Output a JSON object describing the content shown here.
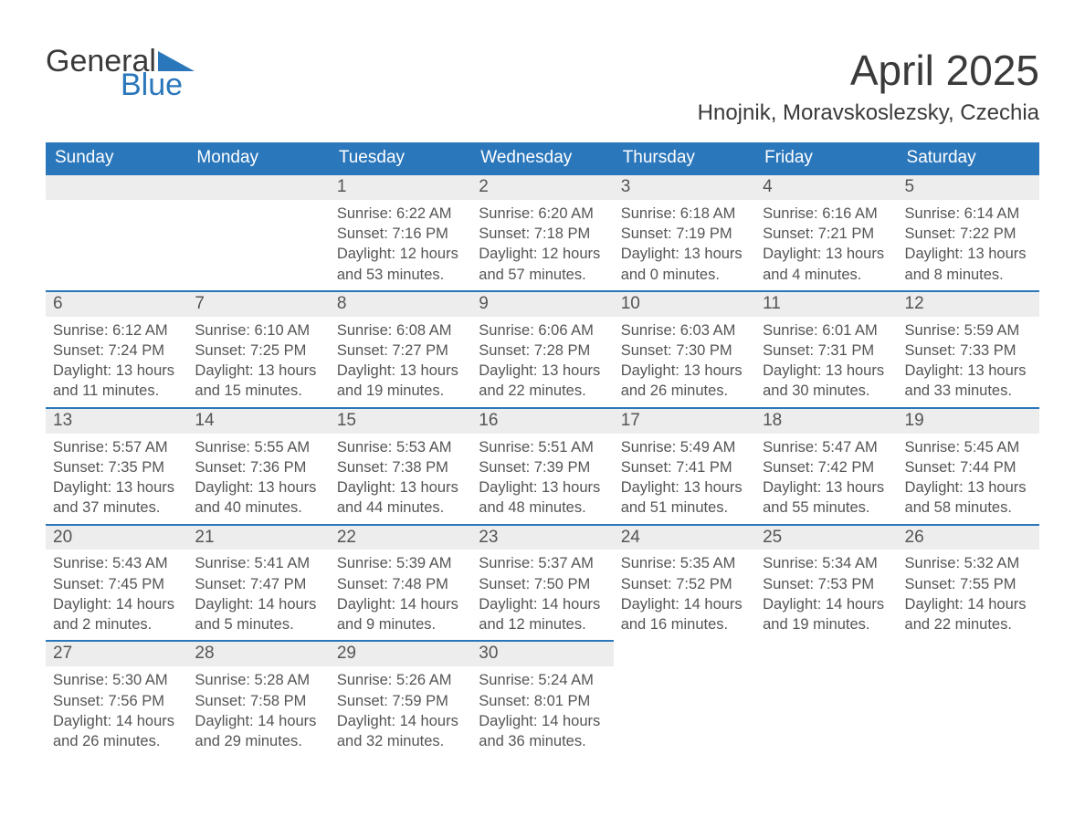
{
  "brand": {
    "text_top": "General",
    "text_bottom": "Blue",
    "triangle_color": "#2b77bb"
  },
  "title": "April 2025",
  "location": "Hnojnik, Moravskoslezsky, Czechia",
  "colors": {
    "header_bg": "#2b77bb",
    "header_text": "#ffffff",
    "daynum_bg": "#ededed",
    "text": "#555555",
    "row_border": "#2b77bb",
    "page_bg": "#ffffff"
  },
  "typography": {
    "title_fontsize": 46,
    "location_fontsize": 24,
    "weekday_fontsize": 19,
    "daynum_fontsize": 19,
    "body_fontsize": 16.5,
    "logo_fontsize": 34
  },
  "weekdays": [
    "Sunday",
    "Monday",
    "Tuesday",
    "Wednesday",
    "Thursday",
    "Friday",
    "Saturday"
  ],
  "weeks": [
    [
      {
        "day": "",
        "sunrise": "",
        "sunset": "",
        "daylight": ""
      },
      {
        "day": "",
        "sunrise": "",
        "sunset": "",
        "daylight": ""
      },
      {
        "day": "1",
        "sunrise": "Sunrise: 6:22 AM",
        "sunset": "Sunset: 7:16 PM",
        "daylight": "Daylight: 12 hours and 53 minutes."
      },
      {
        "day": "2",
        "sunrise": "Sunrise: 6:20 AM",
        "sunset": "Sunset: 7:18 PM",
        "daylight": "Daylight: 12 hours and 57 minutes."
      },
      {
        "day": "3",
        "sunrise": "Sunrise: 6:18 AM",
        "sunset": "Sunset: 7:19 PM",
        "daylight": "Daylight: 13 hours and 0 minutes."
      },
      {
        "day": "4",
        "sunrise": "Sunrise: 6:16 AM",
        "sunset": "Sunset: 7:21 PM",
        "daylight": "Daylight: 13 hours and 4 minutes."
      },
      {
        "day": "5",
        "sunrise": "Sunrise: 6:14 AM",
        "sunset": "Sunset: 7:22 PM",
        "daylight": "Daylight: 13 hours and 8 minutes."
      }
    ],
    [
      {
        "day": "6",
        "sunrise": "Sunrise: 6:12 AM",
        "sunset": "Sunset: 7:24 PM",
        "daylight": "Daylight: 13 hours and 11 minutes."
      },
      {
        "day": "7",
        "sunrise": "Sunrise: 6:10 AM",
        "sunset": "Sunset: 7:25 PM",
        "daylight": "Daylight: 13 hours and 15 minutes."
      },
      {
        "day": "8",
        "sunrise": "Sunrise: 6:08 AM",
        "sunset": "Sunset: 7:27 PM",
        "daylight": "Daylight: 13 hours and 19 minutes."
      },
      {
        "day": "9",
        "sunrise": "Sunrise: 6:06 AM",
        "sunset": "Sunset: 7:28 PM",
        "daylight": "Daylight: 13 hours and 22 minutes."
      },
      {
        "day": "10",
        "sunrise": "Sunrise: 6:03 AM",
        "sunset": "Sunset: 7:30 PM",
        "daylight": "Daylight: 13 hours and 26 minutes."
      },
      {
        "day": "11",
        "sunrise": "Sunrise: 6:01 AM",
        "sunset": "Sunset: 7:31 PM",
        "daylight": "Daylight: 13 hours and 30 minutes."
      },
      {
        "day": "12",
        "sunrise": "Sunrise: 5:59 AM",
        "sunset": "Sunset: 7:33 PM",
        "daylight": "Daylight: 13 hours and 33 minutes."
      }
    ],
    [
      {
        "day": "13",
        "sunrise": "Sunrise: 5:57 AM",
        "sunset": "Sunset: 7:35 PM",
        "daylight": "Daylight: 13 hours and 37 minutes."
      },
      {
        "day": "14",
        "sunrise": "Sunrise: 5:55 AM",
        "sunset": "Sunset: 7:36 PM",
        "daylight": "Daylight: 13 hours and 40 minutes."
      },
      {
        "day": "15",
        "sunrise": "Sunrise: 5:53 AM",
        "sunset": "Sunset: 7:38 PM",
        "daylight": "Daylight: 13 hours and 44 minutes."
      },
      {
        "day": "16",
        "sunrise": "Sunrise: 5:51 AM",
        "sunset": "Sunset: 7:39 PM",
        "daylight": "Daylight: 13 hours and 48 minutes."
      },
      {
        "day": "17",
        "sunrise": "Sunrise: 5:49 AM",
        "sunset": "Sunset: 7:41 PM",
        "daylight": "Daylight: 13 hours and 51 minutes."
      },
      {
        "day": "18",
        "sunrise": "Sunrise: 5:47 AM",
        "sunset": "Sunset: 7:42 PM",
        "daylight": "Daylight: 13 hours and 55 minutes."
      },
      {
        "day": "19",
        "sunrise": "Sunrise: 5:45 AM",
        "sunset": "Sunset: 7:44 PM",
        "daylight": "Daylight: 13 hours and 58 minutes."
      }
    ],
    [
      {
        "day": "20",
        "sunrise": "Sunrise: 5:43 AM",
        "sunset": "Sunset: 7:45 PM",
        "daylight": "Daylight: 14 hours and 2 minutes."
      },
      {
        "day": "21",
        "sunrise": "Sunrise: 5:41 AM",
        "sunset": "Sunset: 7:47 PM",
        "daylight": "Daylight: 14 hours and 5 minutes."
      },
      {
        "day": "22",
        "sunrise": "Sunrise: 5:39 AM",
        "sunset": "Sunset: 7:48 PM",
        "daylight": "Daylight: 14 hours and 9 minutes."
      },
      {
        "day": "23",
        "sunrise": "Sunrise: 5:37 AM",
        "sunset": "Sunset: 7:50 PM",
        "daylight": "Daylight: 14 hours and 12 minutes."
      },
      {
        "day": "24",
        "sunrise": "Sunrise: 5:35 AM",
        "sunset": "Sunset: 7:52 PM",
        "daylight": "Daylight: 14 hours and 16 minutes."
      },
      {
        "day": "25",
        "sunrise": "Sunrise: 5:34 AM",
        "sunset": "Sunset: 7:53 PM",
        "daylight": "Daylight: 14 hours and 19 minutes."
      },
      {
        "day": "26",
        "sunrise": "Sunrise: 5:32 AM",
        "sunset": "Sunset: 7:55 PM",
        "daylight": "Daylight: 14 hours and 22 minutes."
      }
    ],
    [
      {
        "day": "27",
        "sunrise": "Sunrise: 5:30 AM",
        "sunset": "Sunset: 7:56 PM",
        "daylight": "Daylight: 14 hours and 26 minutes."
      },
      {
        "day": "28",
        "sunrise": "Sunrise: 5:28 AM",
        "sunset": "Sunset: 7:58 PM",
        "daylight": "Daylight: 14 hours and 29 minutes."
      },
      {
        "day": "29",
        "sunrise": "Sunrise: 5:26 AM",
        "sunset": "Sunset: 7:59 PM",
        "daylight": "Daylight: 14 hours and 32 minutes."
      },
      {
        "day": "30",
        "sunrise": "Sunrise: 5:24 AM",
        "sunset": "Sunset: 8:01 PM",
        "daylight": "Daylight: 14 hours and 36 minutes."
      },
      {
        "day": "",
        "sunrise": "",
        "sunset": "",
        "daylight": ""
      },
      {
        "day": "",
        "sunrise": "",
        "sunset": "",
        "daylight": ""
      },
      {
        "day": "",
        "sunrise": "",
        "sunset": "",
        "daylight": ""
      }
    ]
  ]
}
